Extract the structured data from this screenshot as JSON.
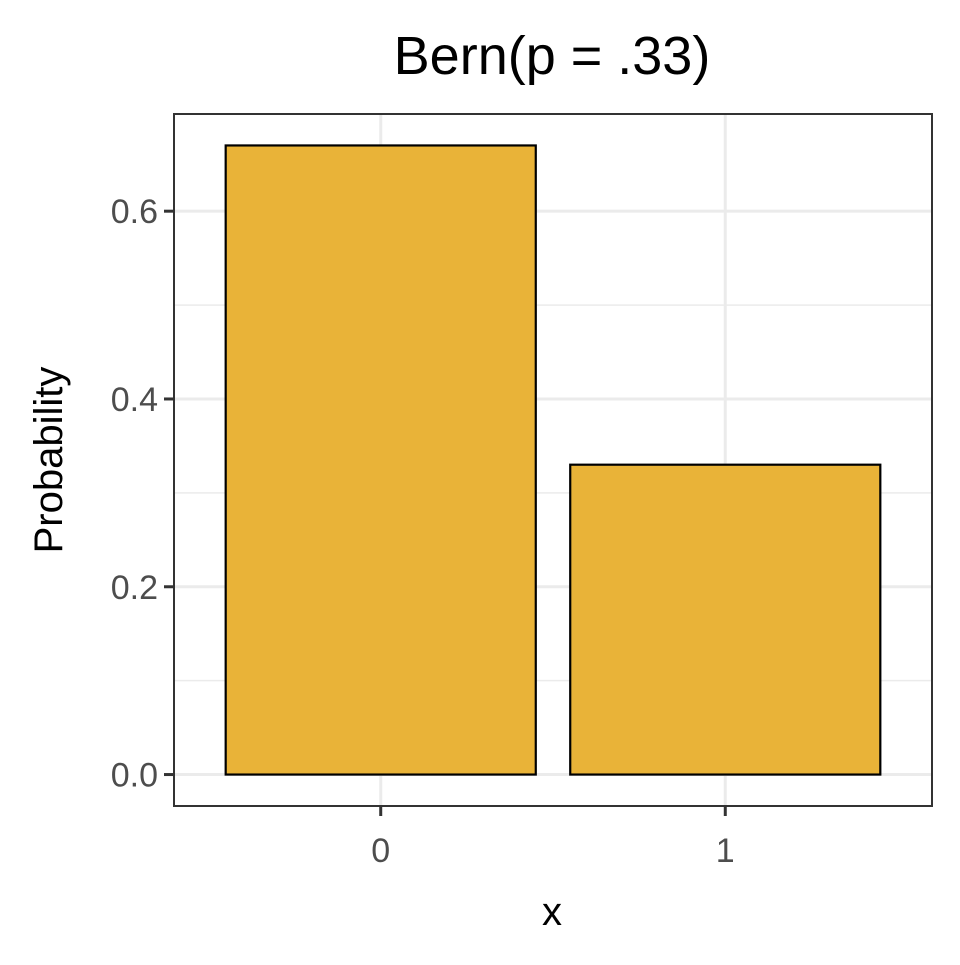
{
  "chart_data": {
    "type": "bar",
    "title": "Bern(p = .33)",
    "xlabel": "x",
    "ylabel": "Probability",
    "categories": [
      "0",
      "1"
    ],
    "values": [
      0.67,
      0.33
    ],
    "ylim": [
      -0.0335,
      0.7035
    ],
    "yticks": [
      0.0,
      0.2,
      0.4,
      0.6
    ],
    "ytick_labels": [
      "0.0",
      "0.2",
      "0.4",
      "0.6"
    ],
    "grid": true,
    "bar_fill": "#E9B338",
    "bar_stroke": "#000000",
    "panel_border": "#333333",
    "grid_color": "#EBEBEB"
  }
}
